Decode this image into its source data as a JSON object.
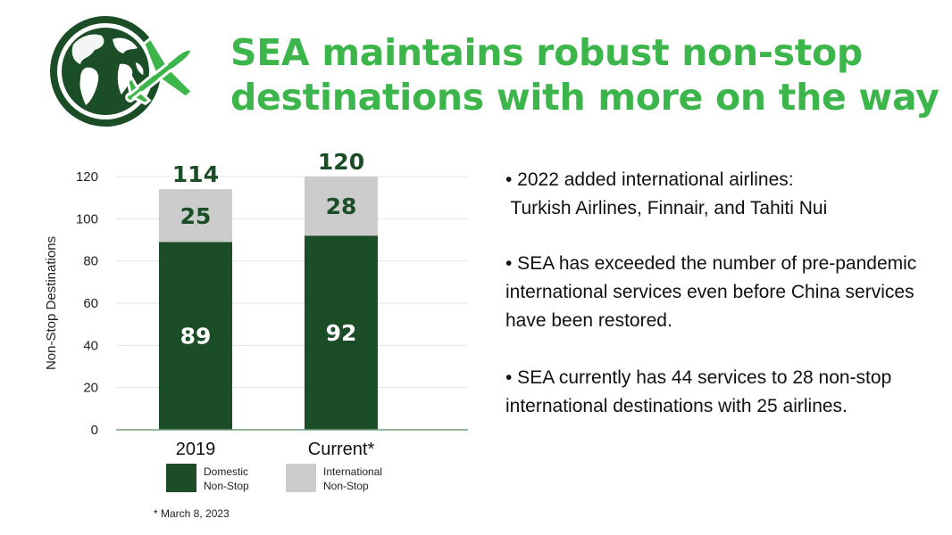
{
  "title": {
    "line1": "SEA maintains robust non-stop",
    "line2": "destinations with more on the way"
  },
  "colors": {
    "title_green": "#3cb64b",
    "dark_green": "#1b4d27",
    "light_gray": "#cccccc",
    "total_label": "#1b4d27"
  },
  "chart_data": {
    "type": "bar",
    "stacked": true,
    "categories": [
      "2019",
      "Current*"
    ],
    "series": [
      {
        "name": "Domestic Non-Stop",
        "values": [
          89,
          92
        ],
        "color": "#1b4d27"
      },
      {
        "name": "International Non-Stop",
        "values": [
          25,
          28
        ],
        "color": "#cccccc"
      }
    ],
    "totals": [
      114,
      120
    ],
    "ylabel": "Non-Stop Destinations",
    "xlabel": "",
    "ylim": [
      0,
      120
    ],
    "yticks": [
      0,
      20,
      40,
      60,
      80,
      100,
      120
    ],
    "grid": true,
    "legend_position": "bottom",
    "legend": [
      {
        "line1": "Domestic",
        "line2": "Non-Stop"
      },
      {
        "line1": "International",
        "line2": "Non-Stop"
      }
    ],
    "footnote": "* March 8, 2023"
  },
  "bullets": [
    {
      "line1": "• 2022 added international airlines:",
      "line2": " Turkish Airlines, Finnair, and Tahiti Nui"
    },
    {
      "text": "• SEA has exceeded the number of pre-pandemic international services even before China services have been restored."
    },
    {
      "text": "• SEA currently has 44 services to 28 non-stop international destinations with 25 airlines."
    }
  ]
}
